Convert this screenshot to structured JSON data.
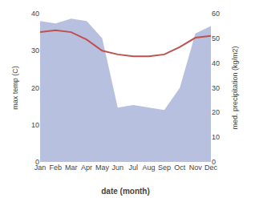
{
  "chart_data": {
    "type": "line",
    "categories": [
      "Jan",
      "Feb",
      "Mar",
      "Apr",
      "May",
      "Jun",
      "Jul",
      "Aug",
      "Sep",
      "Oct",
      "Nov",
      "Dec"
    ],
    "xlabel": "date (month)",
    "ylabel": "max temp (C)",
    "y2label": "med. precipitation (kg/m2)",
    "series": [
      {
        "type": "area",
        "color": "#b8c0e0",
        "axis": "y2",
        "values": [
          57,
          56,
          58,
          57,
          50,
          22,
          23,
          22,
          21,
          30,
          52,
          55
        ]
      },
      {
        "type": "line",
        "color": "#c0504d",
        "values": [
          35,
          35.5,
          35,
          33,
          30,
          29,
          28.5,
          28.5,
          29,
          31,
          33.5,
          34
        ]
      }
    ],
    "ylim": [
      0,
      40
    ],
    "yticks": [
      0,
      10,
      20,
      30,
      40
    ],
    "y2lim": [
      0,
      60
    ],
    "y2ticks": [
      0,
      10,
      20,
      30,
      40,
      50,
      60
    ],
    "grid": false
  }
}
